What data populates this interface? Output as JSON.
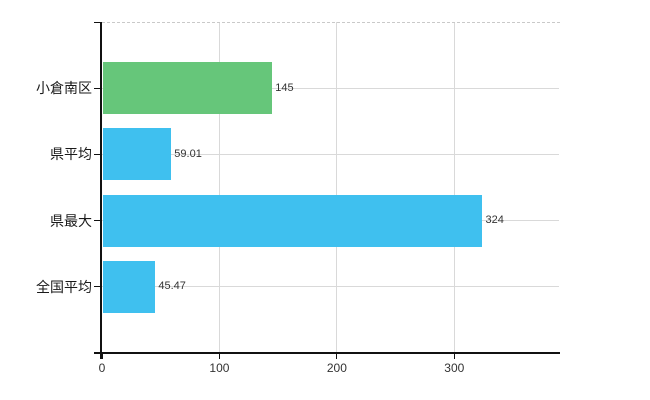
{
  "chart_data": {
    "type": "bar",
    "orientation": "horizontal",
    "title": "",
    "categories": [
      "小倉南区",
      "県平均",
      "県最大",
      "全国平均"
    ],
    "values": [
      145,
      59.01,
      324,
      45.47
    ],
    "value_labels": [
      "145",
      "59.01",
      "324",
      "45.47"
    ],
    "bar_colors": [
      "#66c67a",
      "#3fc0ef",
      "#3fc0ef",
      "#3fc0ef"
    ],
    "x_tick_labels": [
      "0",
      "100",
      "200",
      "300"
    ],
    "x_tick_values": [
      0,
      100,
      200,
      300
    ],
    "xlim": [
      0,
      390
    ],
    "grid": true,
    "legend_position": "none",
    "xlabel": "",
    "ylabel": ""
  },
  "colors": {
    "bar_green": "#66c67a",
    "bar_blue": "#3fc0ef",
    "grid": "#d9d9d9",
    "axis": "#111111",
    "top_border": "#c9c9c9",
    "category_label": "#1a1a1a",
    "value_label": "#333333",
    "tick_label": "#333333",
    "background": "#ffffff"
  }
}
